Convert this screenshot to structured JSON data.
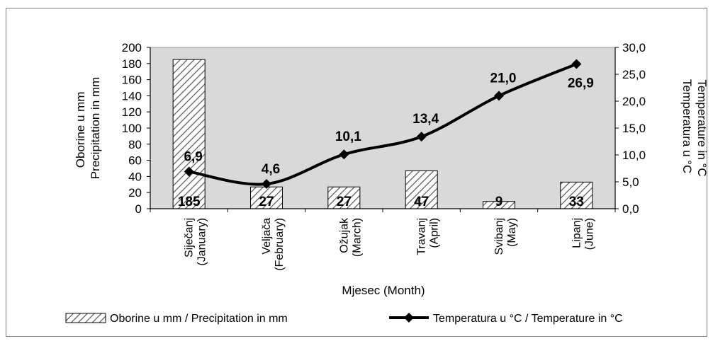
{
  "chart_data": {
    "type": "bar+line",
    "categories": [
      "Siječanj (January)",
      "Veljača (February)",
      "Ožujak (March)",
      "Travanj (April)",
      "Svibanj (May)",
      "Lipanj (June)"
    ],
    "category_lines": [
      [
        "Siječanj",
        "(January)"
      ],
      [
        "Veljača",
        "(February)"
      ],
      [
        "Ožujak",
        "(March)"
      ],
      [
        "Travanj",
        "(April)"
      ],
      [
        "Svibanj",
        "(May)"
      ],
      [
        "Lipanj",
        "(June)"
      ]
    ],
    "series": [
      {
        "name": "Oborine u mm / Precipitation in mm",
        "type": "bar",
        "axis": "left",
        "values": [
          185,
          27,
          27,
          47,
          9,
          33
        ],
        "labels": [
          "185",
          "27",
          "27",
          "47",
          "9",
          "33"
        ]
      },
      {
        "name": "Temperatura u °C / Temperature in °C",
        "type": "line",
        "axis": "right",
        "values": [
          6.9,
          4.6,
          10.1,
          13.4,
          21.0,
          26.9
        ],
        "labels": [
          "6,9",
          "4,6",
          "10,1",
          "13,4",
          "21,0",
          "26,9"
        ]
      }
    ],
    "xlabel": "Mjesec (Month)",
    "ylabel_left": [
      "Oborine u mm",
      "Precipitation in mm"
    ],
    "ylabel_right": [
      "Temperatura u °C",
      "Temperature in °C"
    ],
    "ylim_left": [
      0,
      200
    ],
    "ylim_right": [
      0,
      30
    ],
    "yticks_left": [
      "0",
      "20",
      "40",
      "60",
      "80",
      "100",
      "120",
      "140",
      "160",
      "180",
      "200"
    ],
    "yticks_right": [
      "0,0",
      "5,0",
      "10,0",
      "15,0",
      "20,0",
      "25,0",
      "30,0"
    ],
    "legend_position": "bottom",
    "plot_background": "#d9d9d9",
    "line_color": "#000000",
    "bar_fill": "hatched"
  }
}
